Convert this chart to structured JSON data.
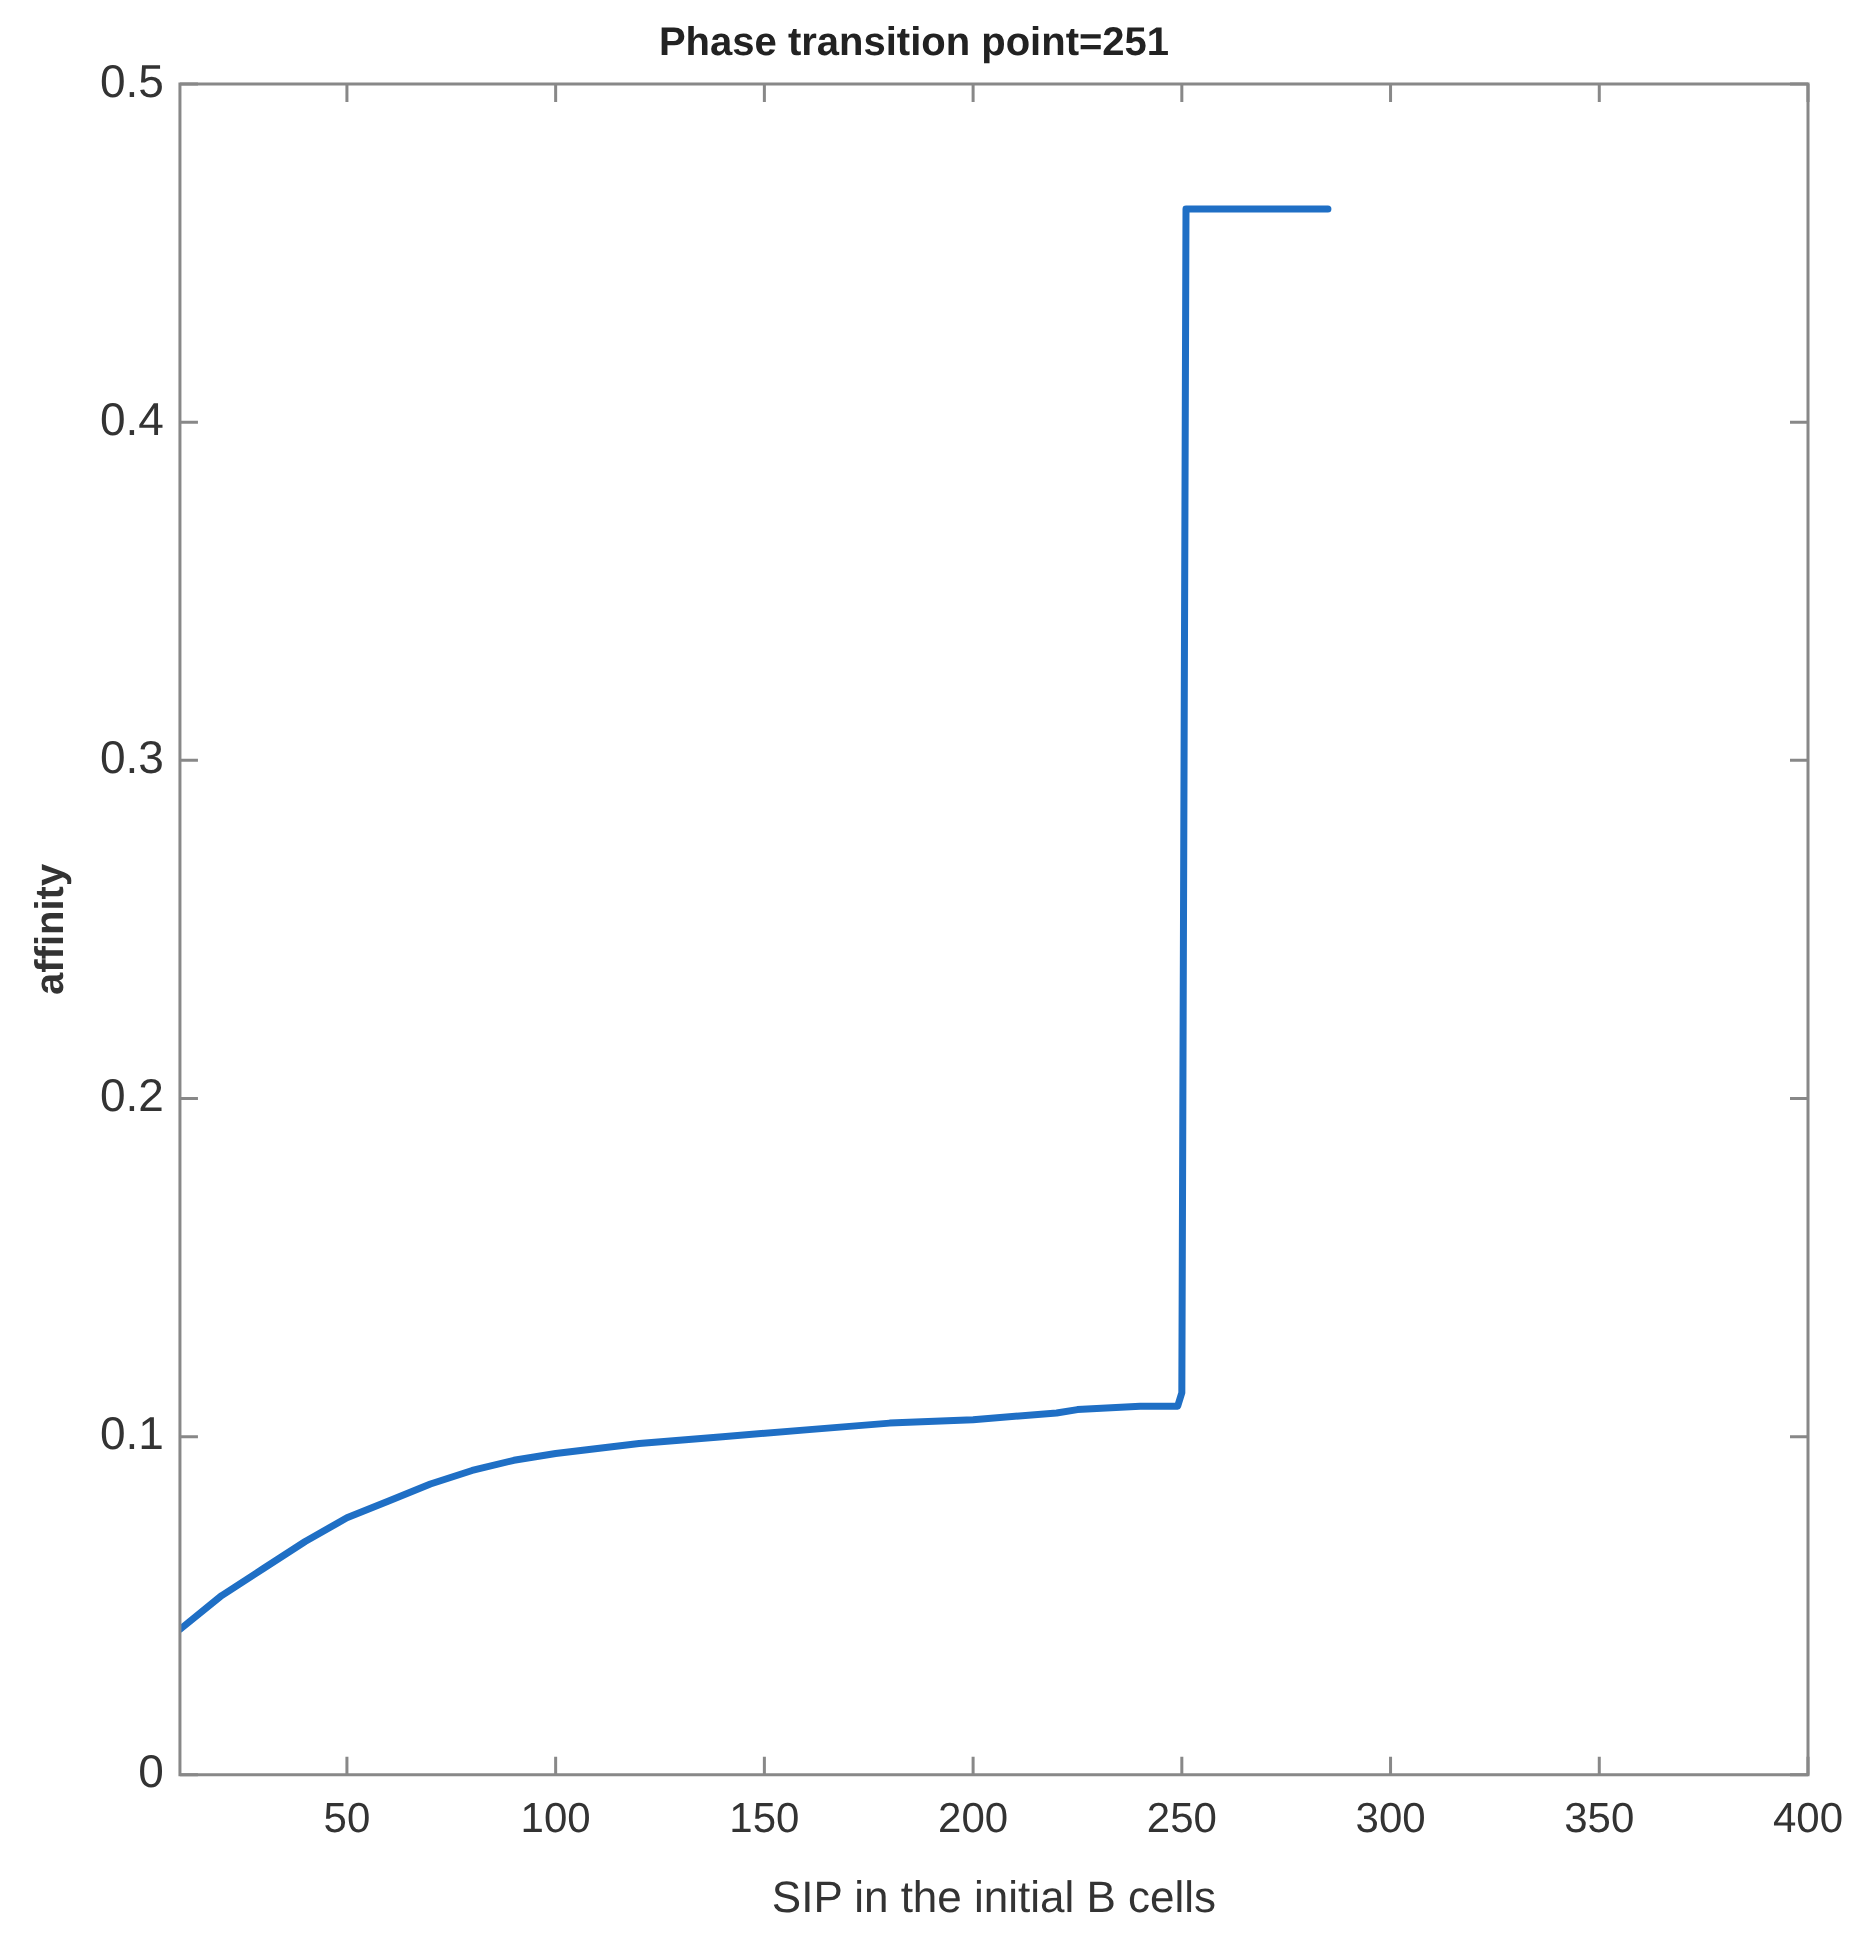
{
  "chart_data": {
    "type": "line",
    "title": "Phase transition point=251",
    "xlabel": "SIP in the initial B cells",
    "ylabel": "affinity",
    "x": [
      10,
      20,
      30,
      40,
      50,
      60,
      70,
      80,
      90,
      100,
      120,
      140,
      160,
      180,
      200,
      220,
      225,
      240,
      249,
      250,
      251,
      285
    ],
    "series": [
      {
        "color": "#1f6fc5",
        "values": [
          0.043,
          0.053,
          0.061,
          0.069,
          0.076,
          0.081,
          0.086,
          0.09,
          0.093,
          0.095,
          0.098,
          0.1,
          0.102,
          0.104,
          0.105,
          0.107,
          0.108,
          0.109,
          0.109,
          0.113,
          0.463,
          0.463
        ]
      }
    ],
    "xlim": [
      10,
      400
    ],
    "xticks": [
      50,
      100,
      150,
      200,
      250,
      300,
      350,
      400
    ],
    "ylim": [
      0,
      0.5
    ],
    "yticks": [
      0,
      0.1,
      0.2,
      0.3,
      0.4,
      0.5
    ],
    "grid": false,
    "legend": false,
    "marker": "none",
    "line_style": "solid"
  }
}
